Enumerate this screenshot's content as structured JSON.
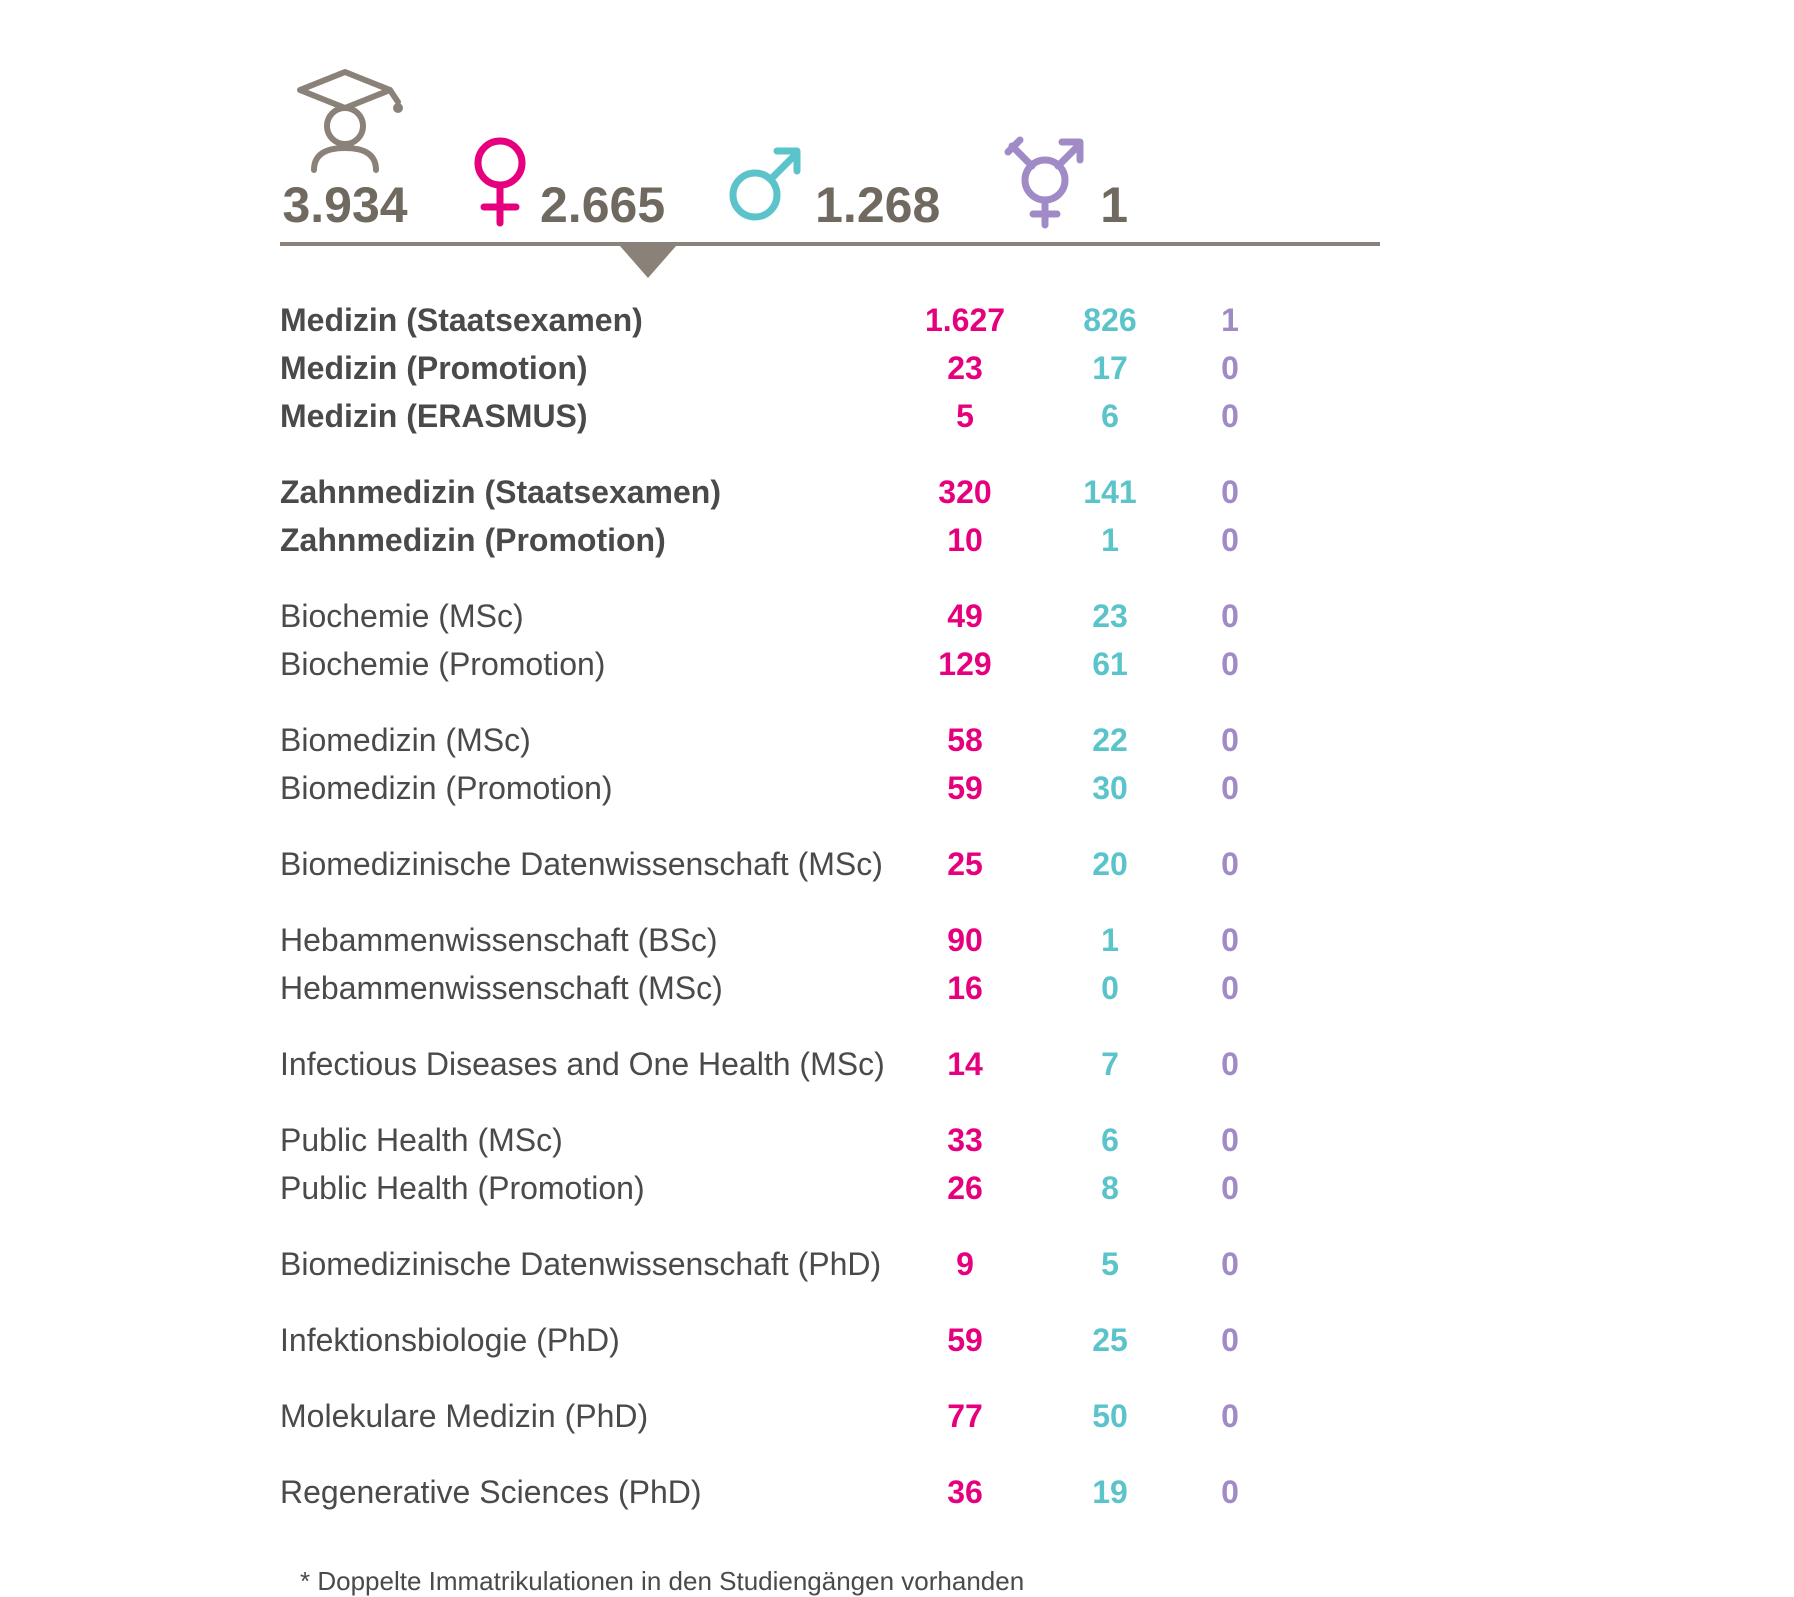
{
  "colors": {
    "total": "#6f6960",
    "female": "#e6007e",
    "male": "#5bc4cb",
    "diverse": "#a18bc7",
    "text": "#4a4a4a",
    "divider": "#8a8278"
  },
  "header": {
    "total": "3.934",
    "female": "2.665",
    "male": "1.268",
    "diverse": "1"
  },
  "groups": [
    {
      "rows": [
        {
          "label": "Medizin (Staatsexamen)",
          "bold": true,
          "f": "1.627",
          "m": "826",
          "d": "1"
        },
        {
          "label": "Medizin (Promotion)",
          "bold": true,
          "f": "23",
          "m": "17",
          "d": "0"
        },
        {
          "label": "Medizin (ERASMUS)",
          "bold": true,
          "f": "5",
          "m": "6",
          "d": "0"
        }
      ]
    },
    {
      "rows": [
        {
          "label": "Zahnmedizin (Staatsexamen)",
          "bold": true,
          "f": "320",
          "m": "141",
          "d": "0"
        },
        {
          "label": "Zahnmedizin (Promotion)",
          "bold": true,
          "f": "10",
          "m": "1",
          "d": "0"
        }
      ]
    },
    {
      "rows": [
        {
          "label": "Biochemie (MSc)",
          "bold": false,
          "f": "49",
          "m": "23",
          "d": "0"
        },
        {
          "label": "Biochemie (Promotion)",
          "bold": false,
          "f": "129",
          "m": "61",
          "d": "0"
        }
      ]
    },
    {
      "rows": [
        {
          "label": "Biomedizin (MSc)",
          "bold": false,
          "f": "58",
          "m": "22",
          "d": "0"
        },
        {
          "label": "Biomedizin (Promotion)",
          "bold": false,
          "f": "59",
          "m": "30",
          "d": "0"
        }
      ]
    },
    {
      "rows": [
        {
          "label": "Biomedizinische Datenwissenschaft (MSc)",
          "bold": false,
          "f": "25",
          "m": "20",
          "d": "0"
        }
      ]
    },
    {
      "rows": [
        {
          "label": "Hebammenwissenschaft (BSc)",
          "bold": false,
          "f": "90",
          "m": "1",
          "d": "0"
        },
        {
          "label": "Hebammenwissenschaft (MSc)",
          "bold": false,
          "f": "16",
          "m": "0",
          "d": "0"
        }
      ]
    },
    {
      "rows": [
        {
          "label": "Infectious Diseases and One Health (MSc)",
          "bold": false,
          "f": "14",
          "m": "7",
          "d": "0"
        }
      ]
    },
    {
      "rows": [
        {
          "label": "Public Health (MSc)",
          "bold": false,
          "f": "33",
          "m": "6",
          "d": "0"
        },
        {
          "label": "Public Health (Promotion)",
          "bold": false,
          "f": "26",
          "m": "8",
          "d": "0"
        }
      ]
    },
    {
      "rows": [
        {
          "label": "Biomedizinische Datenwissenschaft (PhD)",
          "bold": false,
          "f": "9",
          "m": "5",
          "d": "0"
        }
      ]
    },
    {
      "rows": [
        {
          "label": "Infektionsbiologie (PhD)",
          "bold": false,
          "f": "59",
          "m": "25",
          "d": "0"
        }
      ]
    },
    {
      "rows": [
        {
          "label": "Molekulare Medizin (PhD)",
          "bold": false,
          "f": "77",
          "m": "50",
          "d": "0"
        }
      ]
    },
    {
      "rows": [
        {
          "label": "Regenerative Sciences (PhD)",
          "bold": false,
          "f": "36",
          "m": "19",
          "d": "0"
        }
      ]
    }
  ],
  "footnote": "* Doppelte Immatrikulationen in den Studiengängen vorhanden"
}
